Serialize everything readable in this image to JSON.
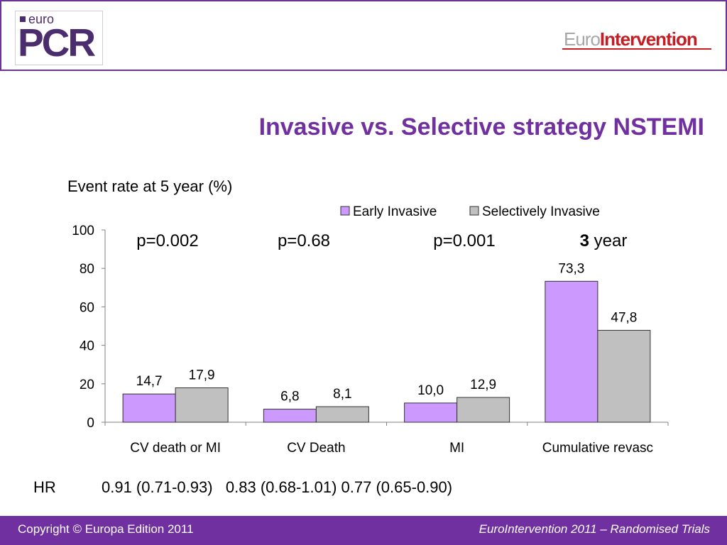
{
  "header": {
    "logo_left_small": "euro",
    "logo_left_big": "PCR",
    "logo_right_part1": "Euro",
    "logo_right_part2": "Intervention"
  },
  "slide_title": "Invasive vs. Selective strategy NSTEMI",
  "subtitle": "Event rate at 5 year (%)",
  "chart_data": {
    "type": "bar",
    "categories": [
      "CV death or MI",
      "CV Death",
      "MI",
      "Cumulative revasc"
    ],
    "series": [
      {
        "name": "Early Invasive",
        "values": [
          14.7,
          6.8,
          10.0,
          73.3
        ],
        "labels": [
          "14,7",
          "6,8",
          "10,0",
          "73,3"
        ],
        "color": "#cc99ff"
      },
      {
        "name": "Selectively Invasive",
        "values": [
          17.9,
          8.1,
          12.9,
          47.8
        ],
        "labels": [
          "17,9",
          "8,1",
          "12,9",
          "47,8"
        ],
        "color": "#c0c0c0"
      }
    ],
    "ylim": [
      0,
      100
    ],
    "yticks": [
      0,
      20,
      40,
      60,
      80,
      100
    ],
    "legend_position": "top",
    "grid": false,
    "annotations": [
      {
        "text": "p=0.002"
      },
      {
        "text": "p=0.68"
      },
      {
        "text": "p=0.001"
      },
      {
        "bold": "3",
        "text": " year"
      }
    ]
  },
  "hr": {
    "label": "HR",
    "values": "0.91 (0.71-0.93)   0.83 (0.68-1.01) 0.77 (0.65-0.90)"
  },
  "footer": {
    "left": "Copyright © Europa Edition 2011",
    "right": "EuroIntervention 2011 – Randomised Trials"
  },
  "colors": {
    "accent": "#7030a0",
    "frame": "#6b3493",
    "brand_red": "#c41e24"
  }
}
